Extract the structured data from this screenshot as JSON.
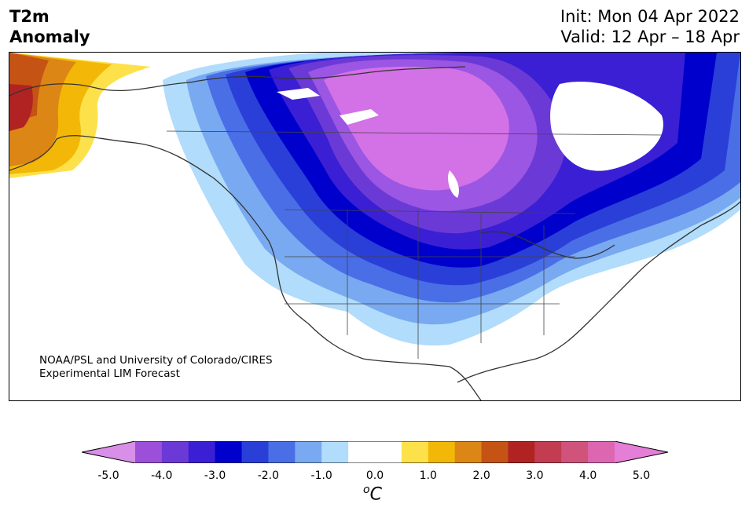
{
  "title": {
    "left_line1": "T2m",
    "left_line2": "Anomaly",
    "right_line1": "Init: Mon 04 Apr 2022",
    "right_line2": "Valid: 12 Apr – 18 Apr"
  },
  "credit": {
    "line1": "NOAA/PSL and University of Colorado/CIRES",
    "line2": "Experimental LIM Forecast"
  },
  "colorbar": {
    "units_main": "C",
    "units_sup": "o",
    "ticks": [
      "-5.0",
      "-4.0",
      "-3.0",
      "-2.0",
      "-1.0",
      "0.0",
      "1.0",
      "2.0",
      "3.0",
      "4.0",
      "5.0"
    ],
    "colors": [
      "#d98ee8",
      "#9c4fd9",
      "#6b3ad6",
      "#3a1fd4",
      "#0000cc",
      "#2a3fd8",
      "#4a6ee6",
      "#79a9f0",
      "#b1dcfb",
      "#ffffff",
      "#ffffff",
      "#fde14a",
      "#f3b807",
      "#dc8616",
      "#c55314",
      "#b12323",
      "#c23c52",
      "#cf537a",
      "#dc66b0",
      "#e47ed6"
    ]
  },
  "map": {
    "colors": {
      "purple_lt": "#d371e6",
      "purple": "#9b56e3",
      "violet": "#6b3ad6",
      "indigo": "#3a1fd4",
      "blue_dk": "#0000cc",
      "blue": "#2a3fd8",
      "blue_md": "#4a6ee6",
      "blue_lt": "#79a9f0",
      "blue_pale": "#b1dcfb",
      "red": "#b12323",
      "orange_dk": "#c55314",
      "orange": "#dc8616",
      "gold": "#f3b807",
      "yellow": "#fde14a",
      "coast": "#333333"
    }
  }
}
